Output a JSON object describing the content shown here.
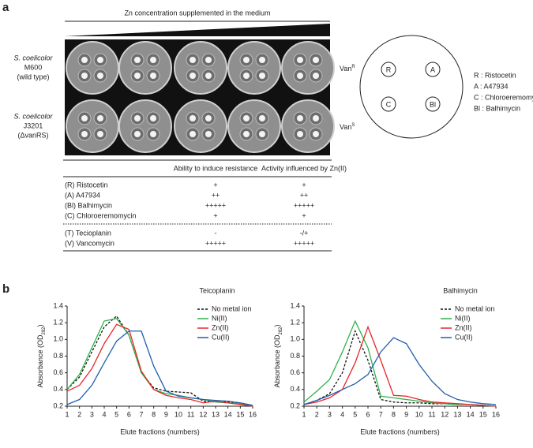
{
  "panel_a": {
    "label": "a",
    "header": "Zn concentration supplemented in the medium",
    "strains": [
      [
        "S. coelicolor",
        "M600",
        "(wild type)"
      ],
      [
        "S. coelicolor",
        "J3201",
        "(ΔvanRS)"
      ]
    ],
    "phenotypes": [
      [
        "Van",
        "R"
      ],
      [
        "Van",
        "S"
      ]
    ],
    "disc_map": {
      "discs": [
        "R",
        "A",
        "C",
        "Bl"
      ],
      "key": [
        "R : Ristocetin",
        "A : A47934",
        "C : Chloroeremomycin",
        "Bl : Balhimycin"
      ]
    },
    "table": {
      "headers": [
        "Ability to induce resistance",
        "Activity influenced by Zn(II)"
      ],
      "groups": [
        [
          [
            "(R) Ristocetin",
            "+",
            "+"
          ],
          [
            "(A) A47934",
            "++",
            "++"
          ],
          [
            "(Bl) Balhimycin",
            "+++++",
            "+++++"
          ],
          [
            "(C) Chloroeremomycin",
            "+",
            "+"
          ]
        ],
        [
          [
            "(T) Tecioplanin",
            "-",
            "-/+"
          ],
          [
            "(V) Vancomycin",
            "+++++",
            "+++++"
          ]
        ]
      ]
    }
  },
  "panel_b_label": "b",
  "chart_data": [
    {
      "type": "line",
      "title": "Teicoplanin",
      "x_label": "Elute fractions (numbers)",
      "y_label": [
        "Absorbance (OD",
        "282",
        ")"
      ],
      "x": [
        1,
        2,
        3,
        4,
        5,
        6,
        7,
        8,
        9,
        10,
        11,
        12,
        13,
        14,
        15,
        16
      ],
      "xlim": [
        1,
        16
      ],
      "xticks": [
        1,
        2,
        3,
        4,
        5,
        6,
        7,
        8,
        9,
        10,
        11,
        12,
        13,
        14,
        15,
        16
      ],
      "ylim": [
        0.2,
        1.4
      ],
      "yticks": [
        0.2,
        0.4,
        0.6,
        0.8,
        {
          "value": 1,
          "label": "1.0"
        },
        1.2,
        1.4
      ],
      "legend": "upper right",
      "series": [
        {
          "name": "No metal ion",
          "color": "#111111",
          "dashed": true,
          "values": [
            0.4,
            0.55,
            0.85,
            1.15,
            1.28,
            1.05,
            0.6,
            0.42,
            0.38,
            0.37,
            0.36,
            0.26,
            0.25,
            0.25,
            0.23,
            0.21
          ]
        },
        {
          "name": "Ni(II)",
          "color": "#2eb34a",
          "values": [
            0.4,
            0.58,
            0.9,
            1.22,
            1.25,
            1.05,
            0.6,
            0.4,
            0.35,
            0.33,
            0.3,
            0.28,
            0.25,
            0.24,
            0.23,
            0.21
          ]
        },
        {
          "name": "Zn(II)",
          "color": "#e8262a",
          "values": [
            0.38,
            0.45,
            0.65,
            0.95,
            1.18,
            1.12,
            0.62,
            0.4,
            0.33,
            0.3,
            0.28,
            0.24,
            0.26,
            0.24,
            0.22,
            0.2
          ]
        },
        {
          "name": "Cu(II)",
          "color": "#1f5fae",
          "values": [
            0.22,
            0.28,
            0.45,
            0.72,
            0.98,
            1.1,
            1.1,
            0.68,
            0.38,
            0.32,
            0.3,
            0.28,
            0.27,
            0.26,
            0.24,
            0.21
          ]
        }
      ]
    },
    {
      "type": "line",
      "title": "Balhimycin",
      "x_label": "Elute fractions (numbers)",
      "y_label": [
        "Absorbance (OD",
        "282",
        ")"
      ],
      "x": [
        1,
        2,
        3,
        4,
        5,
        6,
        7,
        8,
        9,
        10,
        11,
        12,
        13,
        14,
        15,
        16
      ],
      "xlim": [
        1,
        16
      ],
      "xticks": [
        1,
        2,
        3,
        4,
        5,
        6,
        7,
        8,
        9,
        10,
        11,
        12,
        13,
        14,
        15,
        16
      ],
      "ylim": [
        0.2,
        1.4
      ],
      "yticks": [
        0.2,
        0.4,
        0.6,
        0.8,
        {
          "value": 1,
          "label": "1.0"
        },
        1.2,
        1.4
      ],
      "legend": "upper right",
      "series": [
        {
          "name": "No metal ion",
          "color": "#111111",
          "dashed": true,
          "values": [
            0.22,
            0.27,
            0.35,
            0.6,
            1.1,
            0.75,
            0.28,
            0.25,
            0.24,
            0.24,
            0.23,
            0.23,
            0.22,
            0.22,
            0.21,
            0.2
          ]
        },
        {
          "name": "Ni(II)",
          "color": "#2eb34a",
          "values": [
            0.25,
            0.38,
            0.52,
            0.85,
            1.22,
            0.9,
            0.32,
            0.3,
            0.28,
            0.26,
            0.24,
            0.23,
            0.22,
            0.22,
            0.21,
            0.2
          ]
        },
        {
          "name": "Zn(II)",
          "color": "#e8262a",
          "values": [
            0.22,
            0.25,
            0.3,
            0.4,
            0.72,
            1.15,
            0.75,
            0.33,
            0.32,
            0.28,
            0.25,
            0.24,
            0.23,
            0.22,
            0.21,
            0.2
          ]
        },
        {
          "name": "Cu(II)",
          "color": "#1f5fae",
          "values": [
            0.22,
            0.27,
            0.33,
            0.4,
            0.47,
            0.58,
            0.85,
            1.02,
            0.95,
            0.7,
            0.5,
            0.35,
            0.28,
            0.25,
            0.23,
            0.22
          ]
        }
      ]
    }
  ]
}
